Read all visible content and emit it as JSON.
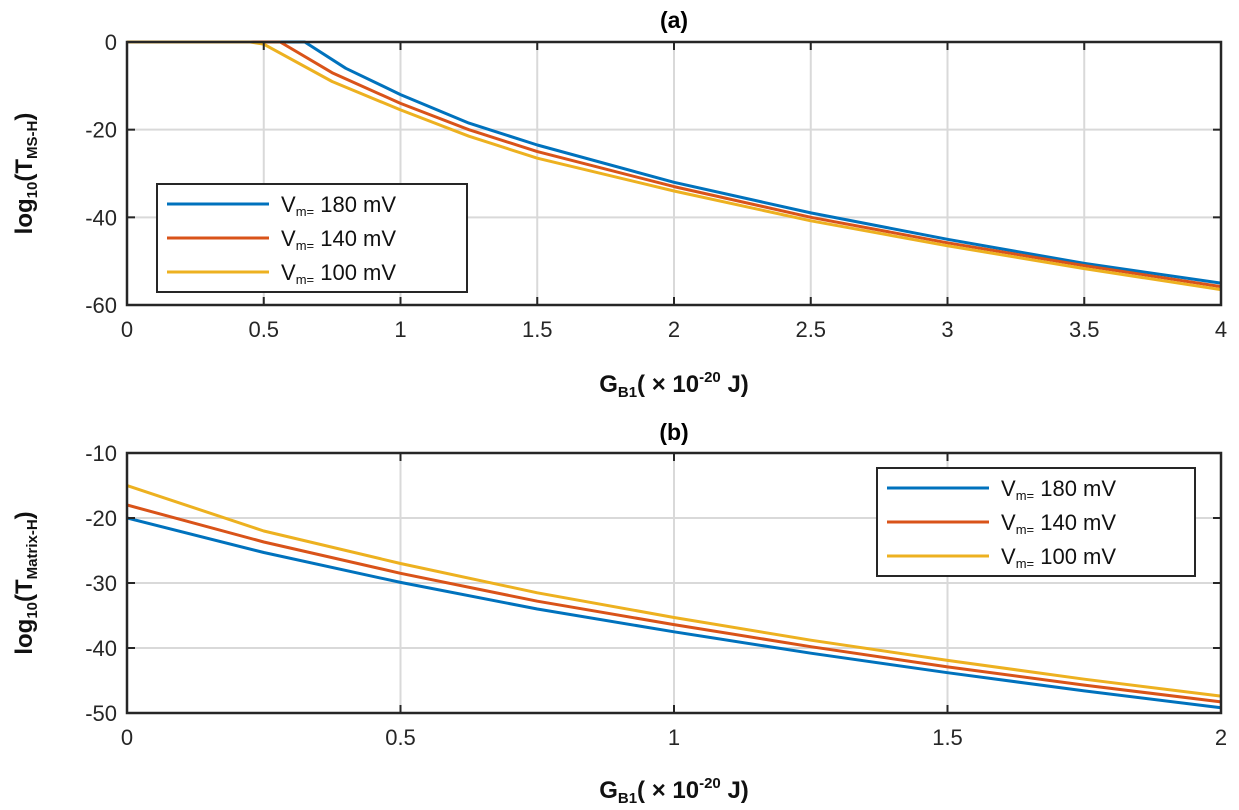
{
  "chart_data": [
    {
      "type": "line",
      "title": "(a)",
      "xlabel": {
        "main": "G",
        "sub": "B1",
        "rest": "( ×  10",
        "sup": "-20",
        "unit": "  J)"
      },
      "ylabel": {
        "pre": "log",
        "sub1": "10",
        "mid": "(T",
        "sub2": "MS-H",
        "post": ")"
      },
      "xlim": [
        0,
        4
      ],
      "ylim": [
        -60,
        0
      ],
      "xticks": [
        0,
        0.5,
        1,
        1.5,
        2,
        2.5,
        3,
        3.5,
        4
      ],
      "xtick_labels": [
        "0",
        "0.5",
        "1",
        "1.5",
        "2",
        "2.5",
        "3",
        "3.5",
        "4"
      ],
      "yticks": [
        -60,
        -40,
        -20,
        0
      ],
      "ytick_labels": [
        "-60",
        "-40",
        "-20",
        "0"
      ],
      "grid": true,
      "legend_position": "bottom-left",
      "series": [
        {
          "name": "Vm= 180 mV",
          "legend": {
            "v": "V",
            "sub": "m=",
            "val": "180  mV"
          },
          "color": "#0072BD",
          "x": [
            0,
            0.6,
            0.65,
            0.8,
            1.0,
            1.25,
            1.5,
            2.0,
            2.5,
            3.0,
            3.5,
            4.0
          ],
          "y": [
            0,
            0,
            0,
            -6,
            -12,
            -18.5,
            -23.5,
            -32,
            -39,
            -45,
            -50.5,
            -55
          ]
        },
        {
          "name": "Vm= 140 mV",
          "legend": {
            "v": "V",
            "sub": "m=",
            "val": "140  mV"
          },
          "color": "#D95319",
          "x": [
            0,
            0.5,
            0.56,
            0.75,
            1.0,
            1.25,
            1.5,
            2.0,
            2.5,
            3.0,
            3.5,
            4.0
          ],
          "y": [
            0,
            0,
            0,
            -7,
            -14,
            -20,
            -25,
            -33,
            -40,
            -45.8,
            -51,
            -55.8
          ]
        },
        {
          "name": "Vm= 100 mV",
          "legend": {
            "v": "V",
            "sub": "m=",
            "val": "100  mV"
          },
          "color": "#EDB120",
          "x": [
            0,
            0.45,
            0.5,
            0.75,
            1.0,
            1.25,
            1.5,
            2.0,
            2.5,
            3.0,
            3.5,
            4.0
          ],
          "y": [
            0,
            0,
            -0.5,
            -9,
            -15.5,
            -21.5,
            -26.5,
            -34,
            -40.8,
            -46.5,
            -51.7,
            -56.5
          ]
        }
      ]
    },
    {
      "type": "line",
      "title": "(b)",
      "xlabel": {
        "main": "G",
        "sub": "B1",
        "rest": "( ×  10",
        "sup": "-20",
        "unit": "  J)"
      },
      "ylabel": {
        "pre": "log",
        "sub1": "10",
        "mid": "(T",
        "sub2": "Matrix-H",
        "post": ")"
      },
      "xlim": [
        0,
        2
      ],
      "ylim": [
        -50,
        -10
      ],
      "xticks": [
        0,
        0.5,
        1,
        1.5,
        2
      ],
      "xtick_labels": [
        "0",
        "0.5",
        "1",
        "1.5",
        "2"
      ],
      "yticks": [
        -50,
        -40,
        -30,
        -20,
        -10
      ],
      "ytick_labels": [
        "-50",
        "-40",
        "-30",
        "-20",
        "-10"
      ],
      "grid": true,
      "legend_position": "top-right",
      "series": [
        {
          "name": "Vm= 180 mV",
          "legend": {
            "v": "V",
            "sub": "m=",
            "val": "180  mV"
          },
          "color": "#0072BD",
          "x": [
            0,
            0.25,
            0.5,
            0.75,
            1.0,
            1.25,
            1.5,
            1.75,
            2.0
          ],
          "y": [
            -20,
            -25.3,
            -29.9,
            -34,
            -37.5,
            -40.8,
            -43.8,
            -46.6,
            -49.2
          ]
        },
        {
          "name": "Vm= 140 mV",
          "legend": {
            "v": "V",
            "sub": "m=",
            "val": "140  mV"
          },
          "color": "#D95319",
          "x": [
            0,
            0.25,
            0.5,
            0.75,
            1.0,
            1.25,
            1.5,
            1.75,
            2.0
          ],
          "y": [
            -18,
            -23.7,
            -28.5,
            -32.8,
            -36.4,
            -39.8,
            -42.9,
            -45.7,
            -48.3
          ]
        },
        {
          "name": "Vm= 100 mV",
          "legend": {
            "v": "V",
            "sub": "m=",
            "val": "100  mV"
          },
          "color": "#EDB120",
          "x": [
            0,
            0.25,
            0.5,
            0.75,
            1.0,
            1.25,
            1.5,
            1.75,
            2.0
          ],
          "y": [
            -15,
            -22,
            -27,
            -31.5,
            -35.3,
            -38.8,
            -41.9,
            -44.8,
            -47.4
          ]
        }
      ]
    }
  ]
}
